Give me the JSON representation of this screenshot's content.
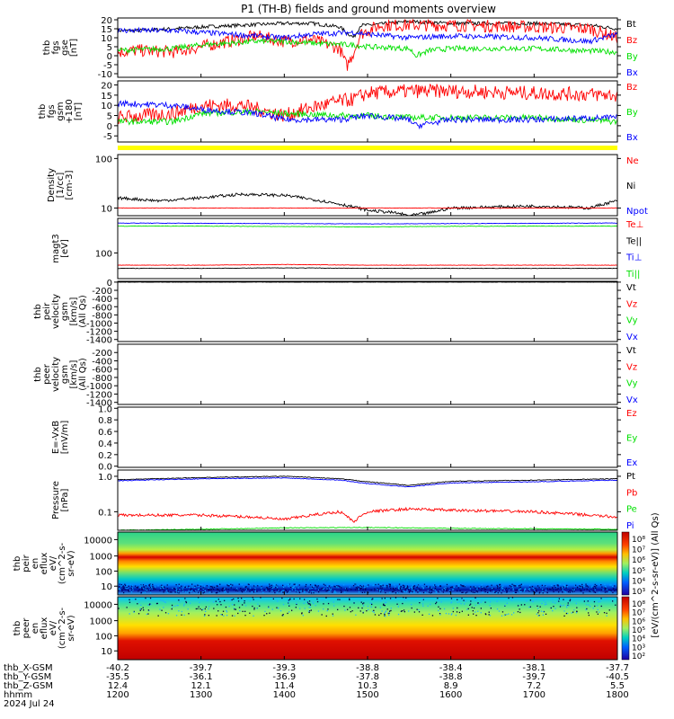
{
  "title": "P1 (TH-B) fields and ground moments overview",
  "colors": {
    "black": "#000000",
    "red": "#ff0000",
    "green": "#00e000",
    "blue": "#0000ff",
    "yellow": "#ffff00"
  },
  "chart_data": [
    {
      "id": "fgs_gse",
      "type": "line",
      "ylabel": [
        "thb",
        "fgs",
        "gse",
        "[nT]"
      ],
      "ylim": [
        -12,
        21
      ],
      "ytick_labels": [
        "20",
        "15",
        "10",
        "5",
        "0",
        "-5",
        "-10"
      ],
      "ytick_values": [
        20,
        15,
        10,
        5,
        0,
        -5,
        -10
      ],
      "legend": [
        {
          "name": "Bt",
          "color": "black"
        },
        {
          "name": "Bz",
          "color": "red"
        },
        {
          "name": "By",
          "color": "green"
        },
        {
          "name": "Bx",
          "color": "blue"
        }
      ],
      "series": [
        {
          "name": "Bt",
          "color": "black",
          "noise": 1.0,
          "x": [
            1200,
            1215,
            1240,
            1300,
            1330,
            1400,
            1420,
            1440,
            1450,
            1455,
            1500,
            1515,
            1530,
            1600,
            1620,
            1700,
            1740,
            1800
          ],
          "values": [
            14,
            14,
            15,
            16,
            17,
            18,
            18,
            16,
            10,
            17,
            17,
            18,
            19,
            18,
            18,
            18,
            17,
            15
          ]
        },
        {
          "name": "Bz",
          "color": "red",
          "noise": 3.5,
          "x": [
            1200,
            1215,
            1240,
            1300,
            1320,
            1340,
            1400,
            1420,
            1440,
            1445,
            1450,
            1455,
            1500,
            1510,
            1530,
            1600,
            1700,
            1740,
            1800
          ],
          "values": [
            2,
            3,
            2,
            5,
            8,
            11,
            8,
            9,
            4,
            -6,
            2,
            12,
            14,
            17,
            17,
            17,
            16,
            15,
            10
          ]
        },
        {
          "name": "By",
          "color": "green",
          "noise": 1.5,
          "x": [
            1200,
            1240,
            1300,
            1340,
            1400,
            1420,
            1450,
            1500,
            1530,
            1535,
            1545,
            1600,
            1700,
            1800
          ],
          "values": [
            3,
            4,
            6,
            8,
            8,
            7,
            6,
            5,
            4,
            0,
            3,
            4,
            4,
            2
          ]
        },
        {
          "name": "Bx",
          "color": "blue",
          "noise": 1.5,
          "x": [
            1200,
            1240,
            1300,
            1340,
            1400,
            1420,
            1450,
            1500,
            1530,
            1600,
            1700,
            1740,
            1800
          ],
          "values": [
            14,
            14,
            13,
            11,
            10,
            12,
            13,
            12,
            10,
            11,
            10,
            8,
            12
          ]
        }
      ]
    },
    {
      "id": "fgs_gsm",
      "type": "line",
      "ylabel": [
        "thb",
        "fgs",
        "gsm",
        "+180",
        "[nT]"
      ],
      "ylim": [
        -8,
        22
      ],
      "ytick_labels": [
        "20",
        "15",
        "10",
        "5",
        "0",
        "-5"
      ],
      "ytick_values": [
        20,
        15,
        10,
        5,
        0,
        -5
      ],
      "legend": [
        {
          "name": "Bz",
          "color": "red"
        },
        {
          "name": "By",
          "color": "green"
        },
        {
          "name": "Bx",
          "color": "blue"
        }
      ],
      "series": [
        {
          "name": "Bz",
          "color": "red",
          "noise": 3.5,
          "x": [
            1200,
            1240,
            1300,
            1330,
            1400,
            1420,
            1440,
            1450,
            1500,
            1530,
            1600,
            1700,
            1800
          ],
          "values": [
            4,
            6,
            10,
            10,
            5,
            9,
            12,
            13,
            16,
            17,
            17,
            16,
            15
          ]
        },
        {
          "name": "By",
          "color": "green",
          "noise": 1.5,
          "x": [
            1200,
            1240,
            1300,
            1340,
            1400,
            1440,
            1500,
            1530,
            1600,
            1700,
            1800
          ],
          "values": [
            2,
            2,
            6,
            7,
            6,
            5,
            5,
            4,
            4,
            4,
            2
          ]
        },
        {
          "name": "Bx",
          "color": "blue",
          "noise": 1.5,
          "x": [
            1200,
            1240,
            1300,
            1340,
            1400,
            1440,
            1500,
            1530,
            1535,
            1600,
            1700,
            1800
          ],
          "values": [
            11,
            10,
            8,
            6,
            3,
            3,
            5,
            3,
            0,
            3,
            3,
            4
          ]
        }
      ]
    },
    {
      "id": "density",
      "type": "line",
      "log": true,
      "ylabel": [
        "Density",
        "[1/cc]",
        "[cm-3]"
      ],
      "ylim": [
        7,
        120
      ],
      "ytick_labels": [
        "100",
        "10"
      ],
      "ytick_values": [
        100,
        10
      ],
      "legend": [
        {
          "name": "Ne",
          "color": "red"
        },
        {
          "name": "Ni",
          "color": "black"
        },
        {
          "name": "Npot",
          "color": "blue"
        }
      ],
      "series": [
        {
          "name": "Ni",
          "color": "black",
          "noise": 0.03,
          "x": [
            1200,
            1230,
            1300,
            1330,
            1400,
            1420,
            1440,
            1500,
            1520,
            1530,
            1545,
            1600,
            1700,
            1740,
            1800
          ],
          "values": [
            16,
            14,
            16,
            19,
            18,
            15,
            12,
            9,
            8,
            7,
            8,
            10,
            11,
            10,
            14
          ]
        },
        {
          "name": "Ne",
          "color": "red",
          "noise": 0.005,
          "x": [
            1200,
            1300,
            1400,
            1500,
            1600,
            1700,
            1800
          ],
          "values": [
            10,
            10,
            10,
            10,
            10,
            10,
            10
          ]
        }
      ]
    },
    {
      "id": "temperature",
      "type": "line",
      "log": true,
      "ylabel": [
        "magt3",
        "[eV]"
      ],
      "ylim": [
        8,
        3000
      ],
      "ytick_labels": [
        "100"
      ],
      "ytick_values": [
        100
      ],
      "legend": [
        {
          "name": "Te⊥",
          "color": "red"
        },
        {
          "name": "Te||",
          "color": "black"
        },
        {
          "name": "Ti⊥",
          "color": "blue"
        },
        {
          "name": "Ti||",
          "color": "green"
        }
      ],
      "series": [
        {
          "name": "Ti⊥",
          "color": "blue",
          "noise": 0.01,
          "x": [
            1200,
            1300,
            1400,
            1500,
            1600,
            1700,
            1800
          ],
          "values": [
            1900,
            1850,
            1800,
            1750,
            1800,
            1850,
            1900
          ]
        },
        {
          "name": "Ti||",
          "color": "green",
          "noise": 0.01,
          "x": [
            1200,
            1300,
            1400,
            1500,
            1600,
            1700,
            1800
          ],
          "values": [
            1400,
            1400,
            1350,
            1300,
            1380,
            1400,
            1400
          ]
        },
        {
          "name": "Te⊥",
          "color": "red",
          "noise": 0.01,
          "x": [
            1200,
            1300,
            1400,
            1500,
            1600,
            1700,
            1800
          ],
          "values": [
            30,
            30,
            32,
            30,
            30,
            30,
            30
          ]
        },
        {
          "name": "Te||",
          "color": "black",
          "noise": 0.01,
          "x": [
            1200,
            1300,
            1400,
            1500,
            1600,
            1700,
            1800
          ],
          "values": [
            22,
            22,
            23,
            22,
            22,
            22,
            22
          ]
        }
      ]
    },
    {
      "id": "peir_velocity",
      "type": "line",
      "ylabel": [
        "thb",
        "peir",
        "velocity",
        "gsm",
        "[km/s]",
        "(All Qs)"
      ],
      "ylim": [
        -1450,
        20
      ],
      "ytick_labels": [
        "0",
        "-200",
        "-400",
        "-600",
        "-800",
        "-1000",
        "-1200",
        "-1400"
      ],
      "ytick_values": [
        0,
        -200,
        -400,
        -600,
        -800,
        -1000,
        -1200,
        -1400
      ],
      "legend": [
        {
          "name": "Vt",
          "color": "black"
        },
        {
          "name": "Vz",
          "color": "red"
        },
        {
          "name": "Vy",
          "color": "green"
        },
        {
          "name": "Vx",
          "color": "blue"
        }
      ],
      "series": [
        {
          "name": "Vt",
          "color": "black",
          "noise": 3,
          "x": [
            1200,
            1300,
            1400,
            1500,
            1600,
            1700,
            1800
          ],
          "values": [
            0,
            0,
            0,
            0,
            0,
            0,
            0
          ]
        }
      ]
    },
    {
      "id": "peer_velocity",
      "type": "line",
      "ylabel": [
        "thb",
        "peer",
        "velocity",
        "gsm",
        "[km/s]",
        "(All Qs)"
      ],
      "ylim": [
        -1450,
        0
      ],
      "ytick_labels": [
        "-200",
        "-400",
        "-600",
        "-800",
        "-1000",
        "-1200",
        "-1400"
      ],
      "ytick_values": [
        -200,
        -400,
        -600,
        -800,
        -1000,
        -1200,
        -1400
      ],
      "legend": [
        {
          "name": "Vt",
          "color": "black"
        },
        {
          "name": "Vz",
          "color": "red"
        },
        {
          "name": "Vy",
          "color": "green"
        },
        {
          "name": "Vx",
          "color": "blue"
        }
      ],
      "series": []
    },
    {
      "id": "efield",
      "type": "line",
      "ylabel": [
        "E=-VxB",
        "[mV/m]"
      ],
      "ylim": [
        -0.02,
        1.02
      ],
      "ytick_labels": [
        "1.0",
        "0.8",
        "0.6",
        "0.4",
        "0.2",
        "0.0"
      ],
      "ytick_values": [
        1.0,
        0.8,
        0.6,
        0.4,
        0.2,
        0.0
      ],
      "legend": [
        {
          "name": "Ez",
          "color": "red"
        },
        {
          "name": "Ey",
          "color": "green"
        },
        {
          "name": "Ex",
          "color": "blue"
        }
      ],
      "series": []
    },
    {
      "id": "pressure",
      "type": "line",
      "log": true,
      "ylabel": [
        "Pressure",
        "[nPa]"
      ],
      "ylim": [
        0.03,
        1.5
      ],
      "ytick_labels": [
        "1.0",
        "0.1"
      ],
      "ytick_values": [
        1.0,
        0.1
      ],
      "legend": [
        {
          "name": "Pt",
          "color": "black"
        },
        {
          "name": "Pb",
          "color": "red"
        },
        {
          "name": "Pe",
          "color": "green"
        },
        {
          "name": "Pi",
          "color": "blue"
        }
      ],
      "series": [
        {
          "name": "Pt",
          "color": "black",
          "noise": 0.01,
          "x": [
            1200,
            1300,
            1400,
            1440,
            1500,
            1530,
            1600,
            1700,
            1800
          ],
          "values": [
            0.8,
            0.92,
            1.0,
            0.85,
            0.7,
            0.55,
            0.72,
            0.78,
            0.85
          ]
        },
        {
          "name": "Pi",
          "color": "blue",
          "noise": 0.01,
          "x": [
            1200,
            1300,
            1400,
            1440,
            1500,
            1530,
            1600,
            1700,
            1800
          ],
          "values": [
            0.75,
            0.85,
            0.9,
            0.78,
            0.62,
            0.5,
            0.65,
            0.7,
            0.78
          ]
        },
        {
          "name": "Pb",
          "color": "red",
          "noise": 0.04,
          "x": [
            1200,
            1300,
            1340,
            1400,
            1440,
            1450,
            1500,
            1530,
            1600,
            1700,
            1800
          ],
          "values": [
            0.08,
            0.08,
            0.07,
            0.06,
            0.1,
            0.05,
            0.1,
            0.12,
            0.11,
            0.1,
            0.07
          ]
        },
        {
          "name": "Pe",
          "color": "green",
          "noise": 0.01,
          "x": [
            1200,
            1300,
            1400,
            1500,
            1600,
            1700,
            1800
          ],
          "values": [
            0.03,
            0.032,
            0.035,
            0.036,
            0.034,
            0.033,
            0.032
          ]
        }
      ]
    },
    {
      "id": "peir_spectrogram",
      "type": "heatmap",
      "ylabel": [
        "thb",
        "peir",
        "en",
        "eflux",
        "eV/",
        "(cm^2-s-",
        "sr-eV)"
      ],
      "ytick_labels": [
        "10000",
        "1000",
        "100",
        "10"
      ]
    },
    {
      "id": "peer_spectrogram",
      "type": "heatmap",
      "ylabel": [
        "thb",
        "peer",
        "en",
        "eflux",
        "eV/",
        "(cm^2-s-",
        "sr-eV)"
      ],
      "ytick_labels": [
        "10000",
        "1000",
        "100",
        "10"
      ]
    }
  ],
  "colorbar": {
    "tick_labels": [
      "10⁸",
      "10⁷",
      "10⁶",
      "10⁵",
      "10⁴",
      "10³"
    ],
    "tick_labels2": [
      "10⁸",
      "10⁷",
      "10⁶",
      "10⁵",
      "10⁴",
      "10³",
      "10²"
    ],
    "label": "[eV/(cm^2-s-sr-eV)] (All Qs)"
  },
  "xaxis": {
    "rows": [
      {
        "label": "thb_X-GSM",
        "values": [
          "-40.2",
          "-39.7",
          "-39.3",
          "-38.8",
          "-38.4",
          "-38.1",
          "-37.7"
        ]
      },
      {
        "label": "thb_Y-GSM",
        "values": [
          "-35.5",
          "-36.1",
          "-36.9",
          "-37.8",
          "-38.8",
          "-39.7",
          "-40.5"
        ]
      },
      {
        "label": "thb_Z-GSM",
        "values": [
          "12.4",
          "12.1",
          "11.4",
          "10.3",
          "8.9",
          "7.2",
          "5.5"
        ]
      },
      {
        "label": "hhmm",
        "values": [
          "1200",
          "1300",
          "1400",
          "1500",
          "1600",
          "1700",
          "1800"
        ]
      }
    ],
    "date": "2024 Jul 24",
    "xlim": [
      1200,
      1800
    ]
  }
}
